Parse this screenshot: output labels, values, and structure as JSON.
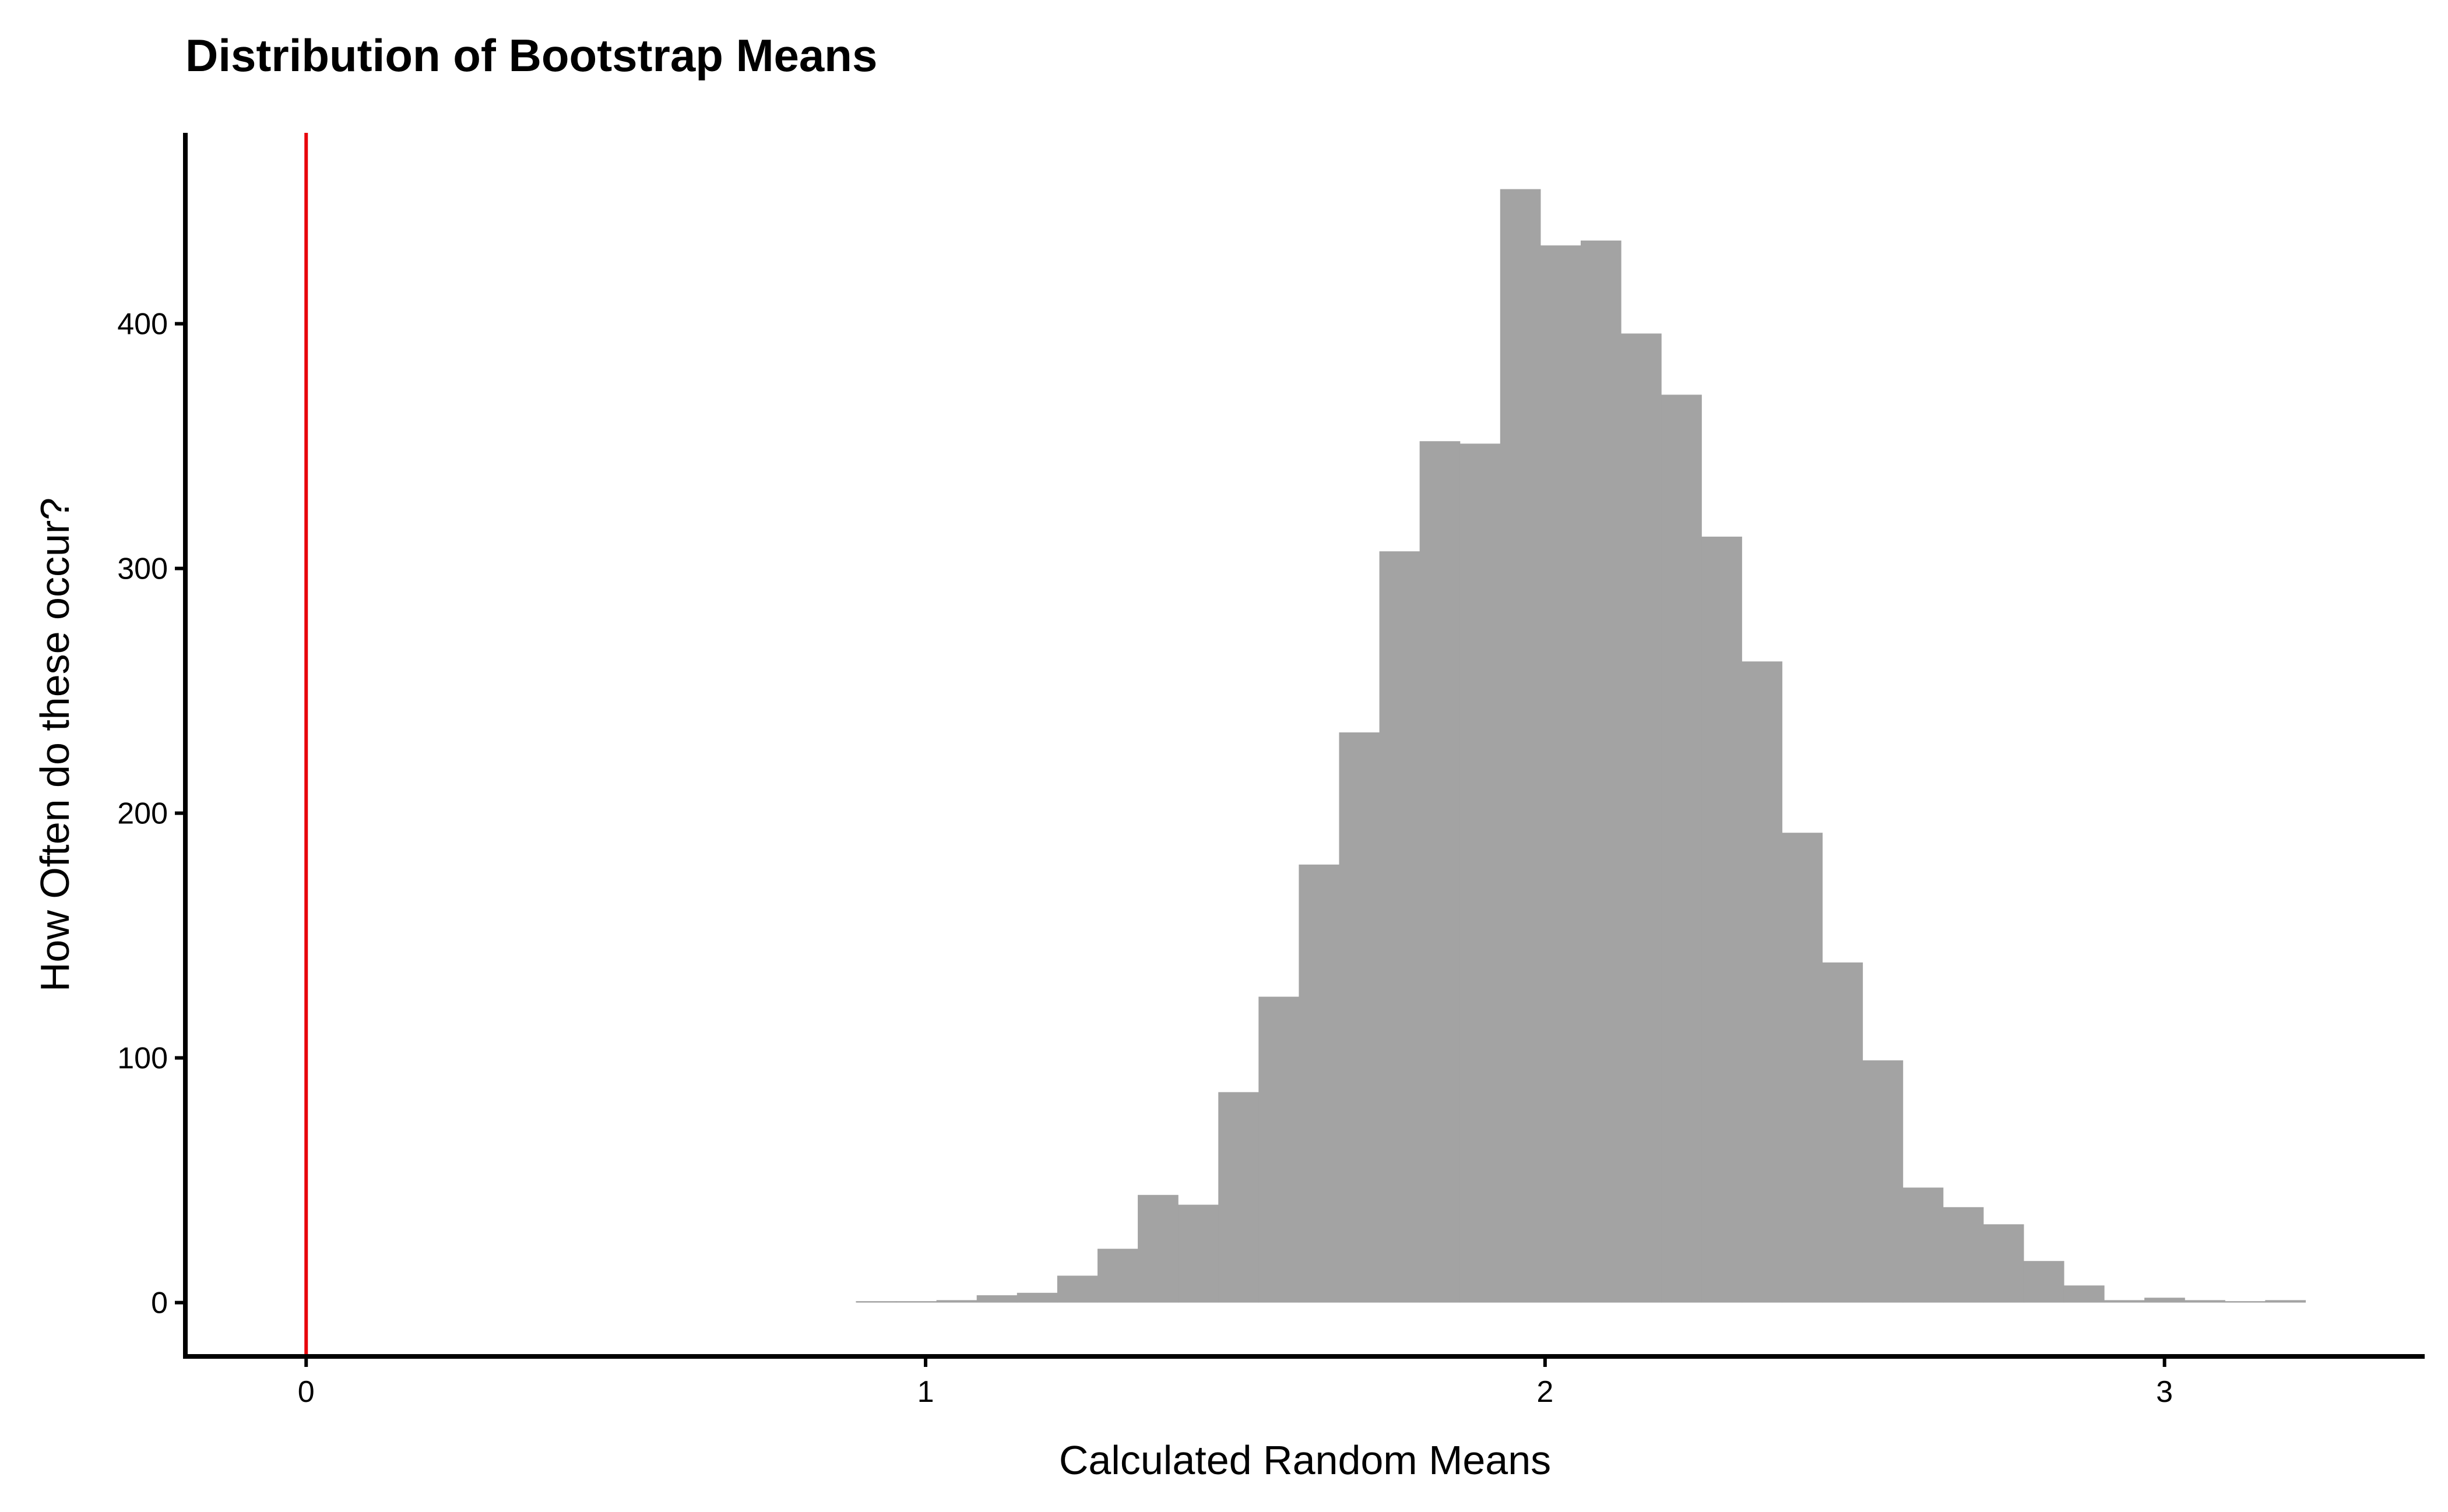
{
  "chart_data": {
    "type": "bar",
    "subtype": "histogram",
    "title": "Distribution of Bootstrap Means",
    "xlabel": "Calculated Random Means",
    "ylabel": "How Often do these occur?",
    "bin_width": 0.065,
    "bins": [
      {
        "x": 0.92,
        "count": 0
      },
      {
        "x": 0.985,
        "count": 0
      },
      {
        "x": 1.05,
        "count": 1
      },
      {
        "x": 1.115,
        "count": 3
      },
      {
        "x": 1.18,
        "count": 4
      },
      {
        "x": 1.245,
        "count": 11
      },
      {
        "x": 1.31,
        "count": 22
      },
      {
        "x": 1.375,
        "count": 44
      },
      {
        "x": 1.44,
        "count": 40
      },
      {
        "x": 1.505,
        "count": 86
      },
      {
        "x": 1.57,
        "count": 125
      },
      {
        "x": 1.635,
        "count": 179
      },
      {
        "x": 1.7,
        "count": 233
      },
      {
        "x": 1.765,
        "count": 307
      },
      {
        "x": 1.83,
        "count": 352
      },
      {
        "x": 1.895,
        "count": 351
      },
      {
        "x": 1.96,
        "count": 455
      },
      {
        "x": 2.025,
        "count": 432
      },
      {
        "x": 2.09,
        "count": 434
      },
      {
        "x": 2.155,
        "count": 396
      },
      {
        "x": 2.22,
        "count": 371
      },
      {
        "x": 2.285,
        "count": 313
      },
      {
        "x": 2.35,
        "count": 262
      },
      {
        "x": 2.415,
        "count": 192
      },
      {
        "x": 2.48,
        "count": 139
      },
      {
        "x": 2.545,
        "count": 99
      },
      {
        "x": 2.61,
        "count": 47
      },
      {
        "x": 2.675,
        "count": 39
      },
      {
        "x": 2.74,
        "count": 32
      },
      {
        "x": 2.805,
        "count": 17
      },
      {
        "x": 2.87,
        "count": 7
      },
      {
        "x": 2.935,
        "count": 1
      },
      {
        "x": 3.0,
        "count": 2
      },
      {
        "x": 3.065,
        "count": 1
      },
      {
        "x": 3.13,
        "count": 0
      },
      {
        "x": 3.195,
        "count": 1
      }
    ],
    "reference_line": {
      "x": 0,
      "color": "#e8000b"
    },
    "bar_color": "#a3a3a3",
    "xlim": [
      -0.195,
      3.42
    ],
    "ylim": [
      -22,
      478
    ],
    "xticks": [
      0,
      1,
      2,
      3
    ],
    "xtick_labels": [
      "0",
      "1",
      "2",
      "3"
    ],
    "yticks": [
      0,
      100,
      200,
      300,
      400
    ],
    "ytick_labels": [
      "0",
      "100",
      "200",
      "300",
      "400"
    ],
    "grid": false,
    "legend": "none"
  }
}
